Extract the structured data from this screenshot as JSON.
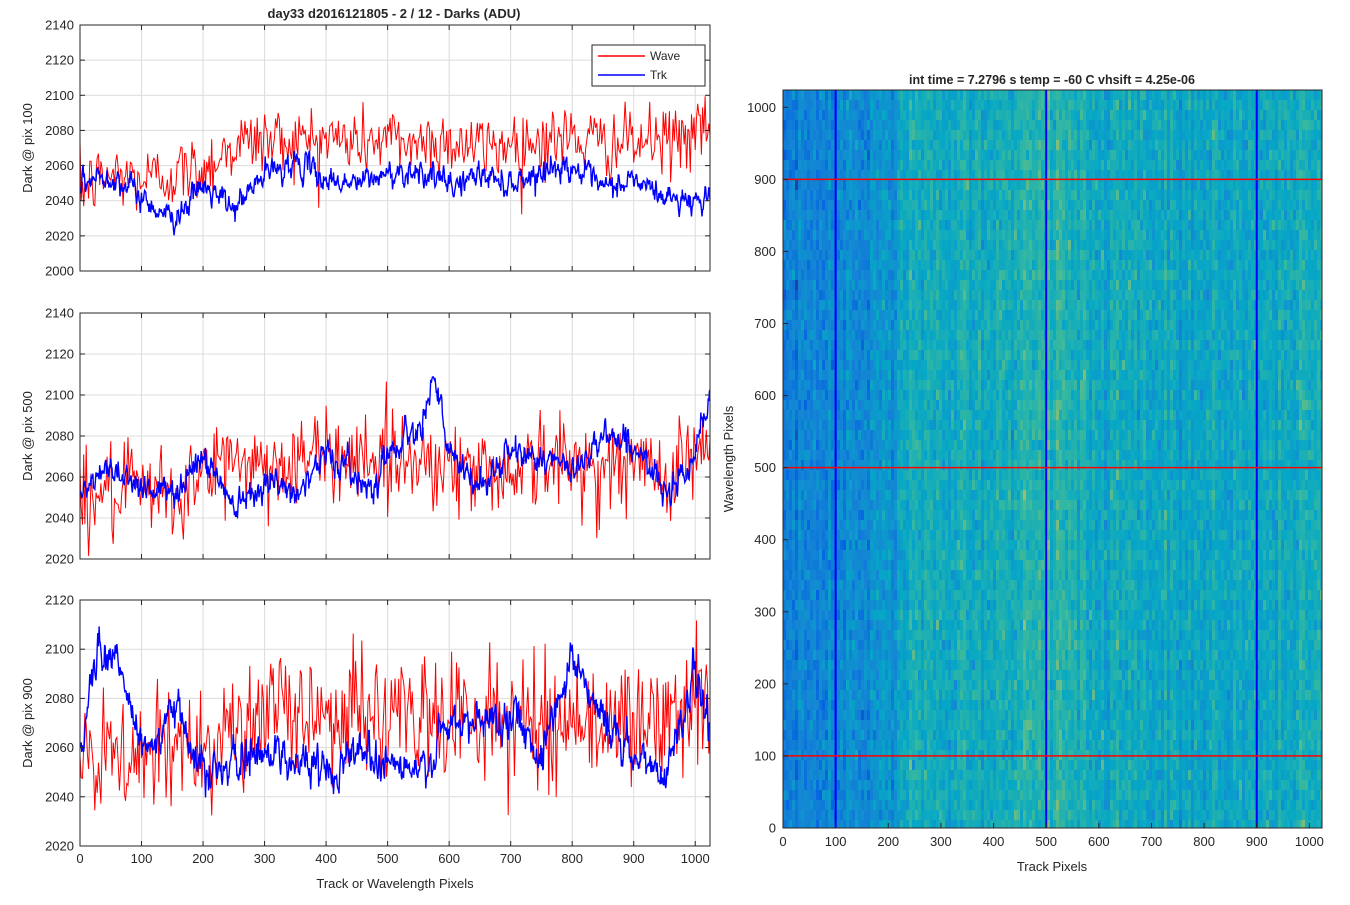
{
  "figure": {
    "colors": {
      "wave": "#ff0000",
      "trk": "#0000ff",
      "axis": "#262626",
      "grid": "#dcdcdc"
    }
  },
  "chart_data": [
    {
      "type": "line",
      "title": "day33 d2016121805 - 2 / 12 - Darks (ADU)",
      "xlabel": "",
      "ylabel": "Dark @ pix 100",
      "xlim": [
        0,
        1024
      ],
      "ylim": [
        2000,
        2140
      ],
      "xticks": [
        0,
        100,
        200,
        300,
        400,
        500,
        600,
        700,
        800,
        900,
        1000
      ],
      "yticks": [
        2000,
        2020,
        2040,
        2060,
        2080,
        2100,
        2120,
        2140
      ],
      "xtick_labels_visible": false,
      "grid": true,
      "legend": {
        "placement": "top-right",
        "entries": [
          "Wave",
          "Trk"
        ]
      },
      "series": [
        {
          "name": "Wave",
          "color": "#ff0000",
          "x": [
            0,
            50,
            100,
            150,
            200,
            250,
            300,
            350,
            400,
            450,
            500,
            550,
            600,
            650,
            700,
            750,
            800,
            850,
            900,
            950,
            1000,
            1024
          ],
          "values": [
            2047,
            2055,
            2052,
            2055,
            2058,
            2072,
            2075,
            2074,
            2076,
            2073,
            2075,
            2073,
            2074,
            2070,
            2073,
            2074,
            2076,
            2072,
            2073,
            2074,
            2078,
            2075
          ],
          "noise": 14
        },
        {
          "name": "Trk",
          "color": "#0000ff",
          "x": [
            0,
            50,
            100,
            150,
            200,
            250,
            300,
            350,
            400,
            450,
            500,
            550,
            600,
            650,
            700,
            750,
            800,
            850,
            900,
            950,
            1000,
            1024
          ],
          "values": [
            2050,
            2055,
            2042,
            2030,
            2048,
            2035,
            2055,
            2062,
            2052,
            2050,
            2055,
            2058,
            2048,
            2055,
            2050,
            2057,
            2060,
            2046,
            2052,
            2042,
            2040,
            2045
          ],
          "noise": 7
        }
      ]
    },
    {
      "type": "line",
      "title": "",
      "xlabel": "",
      "ylabel": "Dark @ pix 500",
      "xlim": [
        0,
        1024
      ],
      "ylim": [
        2020,
        2140
      ],
      "xticks": [
        0,
        100,
        200,
        300,
        400,
        500,
        600,
        700,
        800,
        900,
        1000
      ],
      "yticks": [
        2020,
        2040,
        2060,
        2080,
        2100,
        2120,
        2140
      ],
      "xtick_labels_visible": false,
      "grid": true,
      "series": [
        {
          "name": "Wave",
          "color": "#ff0000",
          "x": [
            0,
            50,
            100,
            150,
            200,
            250,
            300,
            350,
            400,
            450,
            500,
            550,
            600,
            650,
            700,
            750,
            800,
            850,
            900,
            950,
            1000,
            1024
          ],
          "values": [
            2048,
            2052,
            2052,
            2050,
            2060,
            2070,
            2065,
            2068,
            2070,
            2072,
            2068,
            2070,
            2066,
            2062,
            2064,
            2068,
            2066,
            2065,
            2066,
            2062,
            2072,
            2075
          ],
          "noise": 16
        },
        {
          "name": "Trk",
          "color": "#0000ff",
          "x": [
            0,
            25,
            50,
            100,
            150,
            200,
            250,
            300,
            350,
            400,
            450,
            475,
            500,
            550,
            575,
            600,
            650,
            700,
            750,
            800,
            850,
            900,
            950,
            1000,
            1024
          ],
          "values": [
            2050,
            2058,
            2065,
            2056,
            2052,
            2070,
            2048,
            2058,
            2052,
            2072,
            2060,
            2055,
            2072,
            2085,
            2110,
            2070,
            2055,
            2072,
            2070,
            2062,
            2082,
            2075,
            2052,
            2072,
            2100
          ],
          "noise": 7
        }
      ]
    },
    {
      "type": "line",
      "title": "",
      "xlabel": "Track or Wavelength Pixels",
      "ylabel": "Dark @ pix 900",
      "xlim": [
        0,
        1024
      ],
      "ylim": [
        2020,
        2120
      ],
      "xticks": [
        0,
        100,
        200,
        300,
        400,
        500,
        600,
        700,
        800,
        900,
        1000
      ],
      "xtick_labels": [
        "0",
        "100",
        "200",
        "300",
        "400",
        "500",
        "600",
        "700",
        "800",
        "900",
        "1000"
      ],
      "yticks": [
        2020,
        2040,
        2060,
        2080,
        2100,
        2120
      ],
      "xtick_labels_visible": true,
      "grid": true,
      "series": [
        {
          "name": "Wave",
          "color": "#ff0000",
          "x": [
            0,
            50,
            100,
            150,
            200,
            250,
            300,
            350,
            400,
            450,
            500,
            550,
            600,
            650,
            700,
            750,
            800,
            850,
            900,
            950,
            1000,
            1024
          ],
          "values": [
            2052,
            2055,
            2055,
            2058,
            2065,
            2068,
            2072,
            2075,
            2075,
            2074,
            2072,
            2073,
            2072,
            2074,
            2070,
            2070,
            2072,
            2070,
            2070,
            2070,
            2075,
            2080
          ],
          "noise": 18
        },
        {
          "name": "Trk",
          "color": "#0000ff",
          "x": [
            0,
            30,
            60,
            100,
            130,
            160,
            200,
            250,
            300,
            350,
            400,
            450,
            500,
            550,
            600,
            650,
            700,
            750,
            800,
            850,
            900,
            950,
            1000,
            1024
          ],
          "values": [
            2060,
            2102,
            2095,
            2062,
            2062,
            2078,
            2050,
            2052,
            2060,
            2055,
            2050,
            2060,
            2055,
            2048,
            2068,
            2070,
            2075,
            2058,
            2098,
            2072,
            2055,
            2050,
            2090,
            2070
          ],
          "noise": 8
        }
      ]
    },
    {
      "type": "heatmap",
      "title": "int time = 7.2796 s    temp = -60 C    vhsift = 4.25e-06",
      "xlabel": "Track Pixels",
      "ylabel": "Wavelength Pixels",
      "xlim": [
        0,
        1024
      ],
      "ylim": [
        0,
        1024
      ],
      "xticks": [
        0,
        100,
        200,
        300,
        400,
        500,
        600,
        700,
        800,
        900,
        1000
      ],
      "xtick_labels": [
        "0",
        "100",
        "200",
        "300",
        "400",
        "500",
        "600",
        "700",
        "800",
        "900",
        "1000"
      ],
      "yticks": [
        0,
        100,
        200,
        300,
        400,
        500,
        600,
        700,
        800,
        900,
        1000
      ],
      "ytick_labels": [
        "0",
        "100",
        "200",
        "300",
        "400",
        "500",
        "600",
        "700",
        "800",
        "900",
        "1000"
      ],
      "colormap": "parula",
      "overlay_lines": {
        "vertical_x": [
          100,
          500,
          900
        ],
        "vertical_color": "#0000ff",
        "horizontal_y": [
          100,
          500,
          900
        ],
        "horizontal_color": "#ff0000"
      },
      "column_profile": {
        "x": [
          0,
          100,
          170,
          250,
          400,
          500,
          600,
          800,
          1024
        ],
        "level": [
          0.28,
          0.3,
          0.36,
          0.5,
          0.48,
          0.55,
          0.48,
          0.45,
          0.5
        ]
      }
    }
  ]
}
